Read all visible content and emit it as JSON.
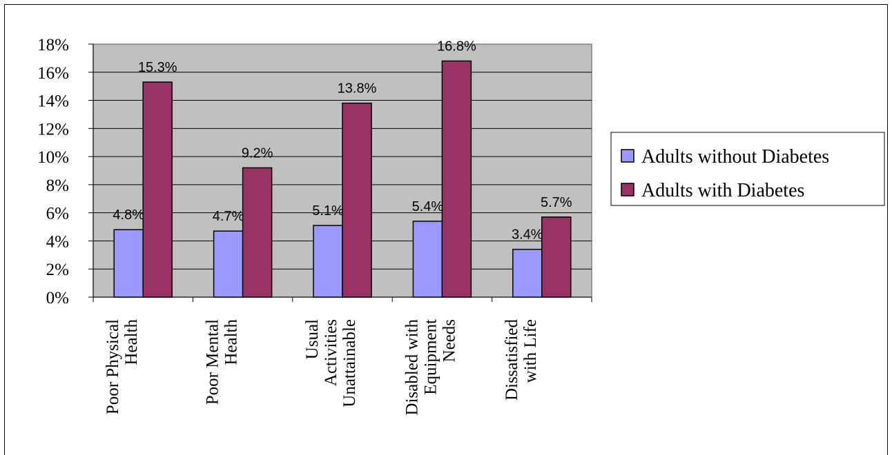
{
  "chart_data": {
    "type": "bar",
    "categories": [
      [
        "Poor Physical",
        "Health"
      ],
      [
        "Poor Mental",
        "Health"
      ],
      [
        "Usual",
        "Activities",
        "Unattainable"
      ],
      [
        "Disabled with",
        "Equipment",
        "Needs"
      ],
      [
        "Dissatisfied",
        "with Life"
      ]
    ],
    "series": [
      {
        "name": "Adults without Diabetes",
        "values": [
          4.8,
          4.7,
          5.1,
          5.4,
          3.4
        ],
        "labels": [
          "4.8%",
          "4.7%",
          "5.1%",
          "5.4%",
          "3.4%"
        ],
        "color": "#9999ff"
      },
      {
        "name": "Adults with Diabetes",
        "values": [
          15.3,
          9.2,
          13.8,
          16.8,
          5.7
        ],
        "labels": [
          "15.3%",
          "9.2%",
          "13.8%",
          "16.8%",
          "5.7%"
        ],
        "color": "#993366"
      }
    ],
    "ylim": [
      0,
      18
    ],
    "yticks": [
      "0%",
      "2%",
      "4%",
      "6%",
      "8%",
      "10%",
      "12%",
      "14%",
      "16%",
      "18%"
    ],
    "grid": true,
    "plot_background": "#c0c0c0",
    "legend_position": "right"
  }
}
